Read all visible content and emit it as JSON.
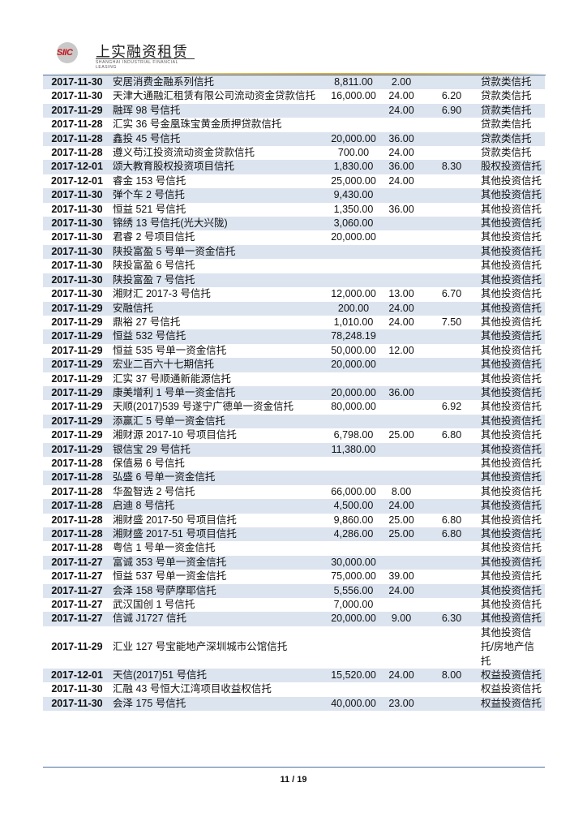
{
  "header": {
    "logo_mark": "SIIC",
    "company_name": "上实融资租赁",
    "company_name_en": "SHANGHAI INDUSTRIAL FINANCIAL LEASING",
    "accent_gold": "#d9a93a",
    "accent_blue": "#4f6fa0",
    "row_shade": "#dce4ef"
  },
  "table": {
    "rows": [
      [
        "2017-11-30",
        "安居消费金融系列信托",
        "8,811.00",
        "2.00",
        "",
        "贷款类信托"
      ],
      [
        "2017-11-30",
        "天津大通融汇租赁有限公司流动资金贷款信托",
        "16,000.00",
        "24.00",
        "6.20",
        "贷款类信托"
      ],
      [
        "2017-11-29",
        "融珲 98 号信托",
        "",
        "24.00",
        "6.90",
        "贷款类信托"
      ],
      [
        "2017-11-28",
        "汇实 36 号金凰珠宝黄金质押贷款信托",
        "",
        "",
        "",
        "贷款类信托"
      ],
      [
        "2017-11-28",
        "鑫投 45 号信托",
        "20,000.00",
        "36.00",
        "",
        "贷款类信托"
      ],
      [
        "2017-11-28",
        "遵义苟江投资流动资金贷款信托",
        "700.00",
        "24.00",
        "",
        "贷款类信托"
      ],
      [
        "2017-12-01",
        "颂大教育股权投资项目信托",
        "1,830.00",
        "36.00",
        "8.30",
        "股权投资信托"
      ],
      [
        "2017-12-01",
        "睿金 153 号信托",
        "25,000.00",
        "24.00",
        "",
        "其他投资信托"
      ],
      [
        "2017-11-30",
        "弹个车 2 号信托",
        "9,430.00",
        "",
        "",
        "其他投资信托"
      ],
      [
        "2017-11-30",
        "恒益 521 号信托",
        "1,350.00",
        "36.00",
        "",
        "其他投资信托"
      ],
      [
        "2017-11-30",
        "锦绣 13 号信托(光大兴陇)",
        "3,060.00",
        "",
        "",
        "其他投资信托"
      ],
      [
        "2017-11-30",
        "君睿 2 号项目信托",
        "20,000.00",
        "",
        "",
        "其他投资信托"
      ],
      [
        "2017-11-30",
        "陕投富盈 5 号单一资金信托",
        "",
        "",
        "",
        "其他投资信托"
      ],
      [
        "2017-11-30",
        "陕投富盈 6 号信托",
        "",
        "",
        "",
        "其他投资信托"
      ],
      [
        "2017-11-30",
        "陕投富盈 7 号信托",
        "",
        "",
        "",
        "其他投资信托"
      ],
      [
        "2017-11-30",
        "湘财汇 2017-3 号信托",
        "12,000.00",
        "13.00",
        "6.70",
        "其他投资信托"
      ],
      [
        "2017-11-29",
        "安融信托",
        "200.00",
        "24.00",
        "",
        "其他投资信托"
      ],
      [
        "2017-11-29",
        "鼎裕 27 号信托",
        "1,010.00",
        "24.00",
        "7.50",
        "其他投资信托"
      ],
      [
        "2017-11-29",
        "恒益 532 号信托",
        "78,248.19",
        "",
        "",
        "其他投资信托"
      ],
      [
        "2017-11-29",
        "恒益 535 号单一资金信托",
        "50,000.00",
        "12.00",
        "",
        "其他投资信托"
      ],
      [
        "2017-11-29",
        "宏业二百六十七期信托",
        "20,000.00",
        "",
        "",
        "其他投资信托"
      ],
      [
        "2017-11-29",
        "汇实 37 号顺通新能源信托",
        "",
        "",
        "",
        "其他投资信托"
      ],
      [
        "2017-11-29",
        "康美增利 1 号单一资金信托",
        "20,000.00",
        "36.00",
        "",
        "其他投资信托"
      ],
      [
        "2017-11-29",
        "天顺(2017)539 号遂宁广德单一资金信托",
        "80,000.00",
        "",
        "6.92",
        "其他投资信托"
      ],
      [
        "2017-11-29",
        "添赢汇 5 号单一资金信托",
        "",
        "",
        "",
        "其他投资信托"
      ],
      [
        "2017-11-29",
        "湘财源 2017-10 号项目信托",
        "6,798.00",
        "25.00",
        "6.80",
        "其他投资信托"
      ],
      [
        "2017-11-29",
        "银信宝 29 号信托",
        "11,380.00",
        "",
        "",
        "其他投资信托"
      ],
      [
        "2017-11-28",
        "保值易 6 号信托",
        "",
        "",
        "",
        "其他投资信托"
      ],
      [
        "2017-11-28",
        "弘盛 6 号单一资金信托",
        "",
        "",
        "",
        "其他投资信托"
      ],
      [
        "2017-11-28",
        "华盈智选 2 号信托",
        "66,000.00",
        "8.00",
        "",
        "其他投资信托"
      ],
      [
        "2017-11-28",
        "启迪 8 号信托",
        "4,500.00",
        "24.00",
        "",
        "其他投资信托"
      ],
      [
        "2017-11-28",
        "湘财盛 2017-50 号项目信托",
        "9,860.00",
        "25.00",
        "6.80",
        "其他投资信托"
      ],
      [
        "2017-11-28",
        "湘财盛 2017-51 号项目信托",
        "4,286.00",
        "25.00",
        "6.80",
        "其他投资信托"
      ],
      [
        "2017-11-28",
        "粤信 1 号单一资金信托",
        "",
        "",
        "",
        "其他投资信托"
      ],
      [
        "2017-11-27",
        "富诚 353 号单一资金信托",
        "30,000.00",
        "",
        "",
        "其他投资信托"
      ],
      [
        "2017-11-27",
        "恒益 537 号单一资金信托",
        "75,000.00",
        "39.00",
        "",
        "其他投资信托"
      ],
      [
        "2017-11-27",
        "会泽 158 号萨摩耶信托",
        "5,556.00",
        "24.00",
        "",
        "其他投资信托"
      ],
      [
        "2017-11-27",
        "武汉国创 1 号信托",
        "7,000.00",
        "",
        "",
        "其他投资信托"
      ],
      [
        "2017-11-27",
        "信诚 J1727 信托",
        "20,000.00",
        "9.00",
        "6.30",
        "其他投资信托"
      ],
      [
        "2017-11-29",
        "汇业 127 号宝能地产深圳城市公馆信托",
        "",
        "",
        "",
        "其他投资信托/房地产信托"
      ],
      [
        "2017-12-01",
        "天信(2017)51 号信托",
        "15,520.00",
        "24.00",
        "8.00",
        "权益投资信托"
      ],
      [
        "2017-11-30",
        "汇融 43 号恒大江湾项目收益权信托",
        "",
        "",
        "",
        "权益投资信托"
      ],
      [
        "2017-11-30",
        "会泽 175 号信托",
        "40,000.00",
        "23.00",
        "",
        "权益投资信托"
      ]
    ]
  },
  "footer": {
    "page_number": "11 / 19"
  }
}
